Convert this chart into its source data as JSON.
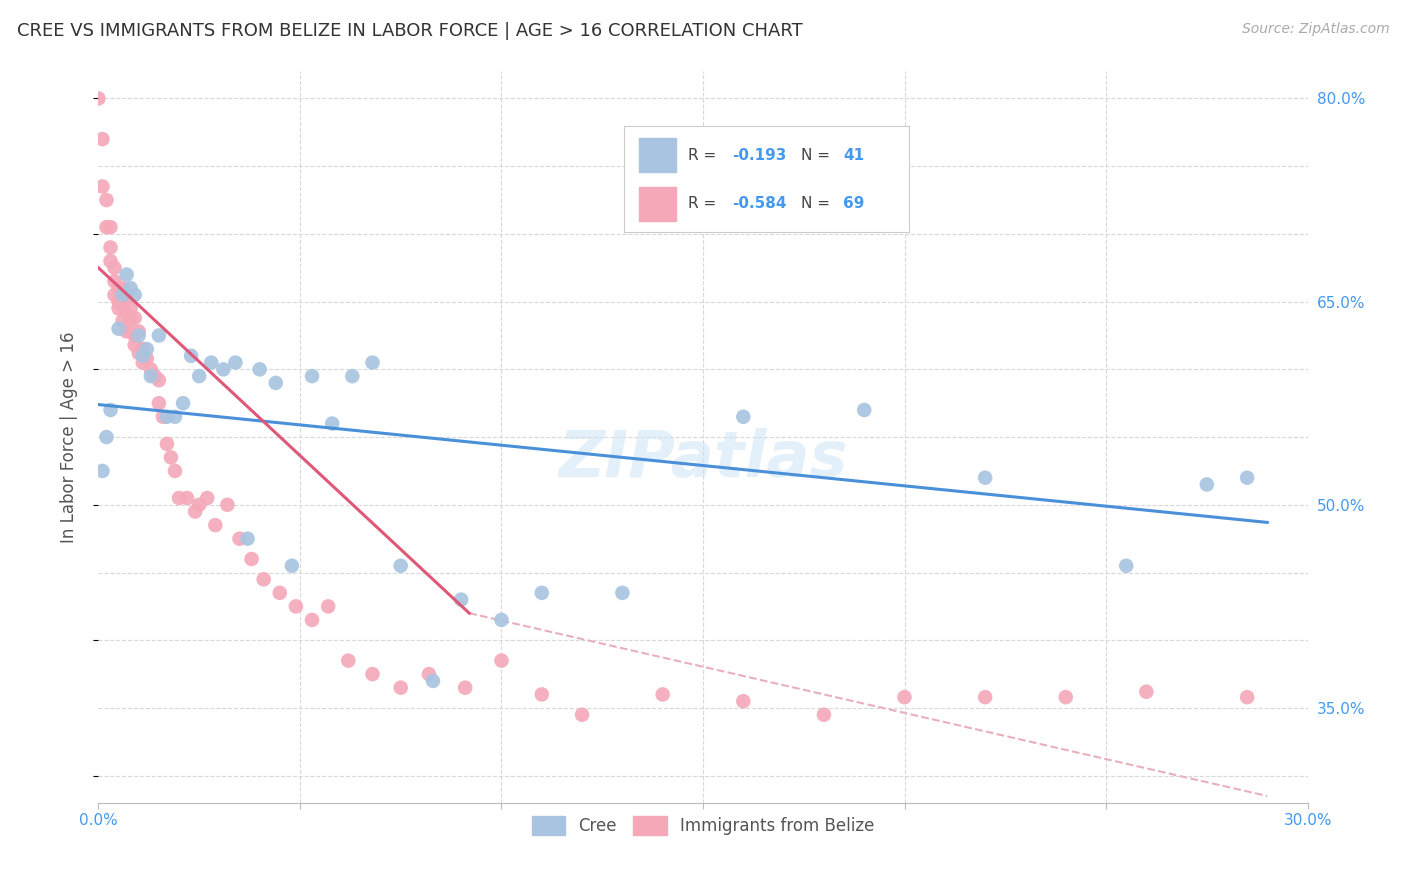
{
  "title": "CREE VS IMMIGRANTS FROM BELIZE IN LABOR FORCE | AGE > 16 CORRELATION CHART",
  "source": "Source: ZipAtlas.com",
  "ylabel": "In Labor Force | Age > 16",
  "watermark": "ZIPatlas",
  "legend_blue_rval": "-0.193",
  "legend_blue_nval": "41",
  "legend_pink_rval": "-0.584",
  "legend_pink_nval": "69",
  "xmin": 0.0,
  "xmax": 0.3,
  "ymin": 0.28,
  "ymax": 0.82,
  "xticks": [
    0.0,
    0.05,
    0.1,
    0.15,
    0.2,
    0.25,
    0.3
  ],
  "yticks": [
    0.3,
    0.35,
    0.4,
    0.45,
    0.5,
    0.55,
    0.6,
    0.65,
    0.7,
    0.75,
    0.8
  ],
  "ytick_labels_right": [
    "",
    "35.0%",
    "",
    "",
    "50.0%",
    "",
    "",
    "65.0%",
    "",
    "",
    "80.0%"
  ],
  "blue_color": "#a8c4e0",
  "pink_color": "#f4a8b8",
  "blue_line_color": "#4a90d9",
  "pink_line_color": "#e05878",
  "dashed_line_color": "#e8b0bc",
  "grid_color": "#d8d8d8",
  "blue_scatter_x": [
    0.001,
    0.002,
    0.003,
    0.005,
    0.006,
    0.007,
    0.008,
    0.009,
    0.01,
    0.011,
    0.012,
    0.013,
    0.015,
    0.017,
    0.019,
    0.021,
    0.023,
    0.025,
    0.028,
    0.031,
    0.034,
    0.037,
    0.04,
    0.044,
    0.048,
    0.053,
    0.058,
    0.063,
    0.068,
    0.075,
    0.083,
    0.09,
    0.1,
    0.11,
    0.13,
    0.16,
    0.19,
    0.22,
    0.255,
    0.275,
    0.285
  ],
  "blue_scatter_y": [
    0.525,
    0.55,
    0.57,
    0.63,
    0.655,
    0.67,
    0.66,
    0.655,
    0.625,
    0.61,
    0.615,
    0.595,
    0.625,
    0.565,
    0.565,
    0.575,
    0.61,
    0.595,
    0.605,
    0.6,
    0.605,
    0.475,
    0.6,
    0.59,
    0.455,
    0.595,
    0.56,
    0.595,
    0.605,
    0.455,
    0.37,
    0.43,
    0.415,
    0.435,
    0.435,
    0.565,
    0.57,
    0.52,
    0.455,
    0.515,
    0.52
  ],
  "pink_scatter_x": [
    0.0,
    0.001,
    0.001,
    0.002,
    0.002,
    0.003,
    0.003,
    0.003,
    0.004,
    0.004,
    0.004,
    0.005,
    0.005,
    0.005,
    0.006,
    0.006,
    0.006,
    0.007,
    0.007,
    0.007,
    0.008,
    0.008,
    0.008,
    0.009,
    0.009,
    0.009,
    0.01,
    0.01,
    0.011,
    0.011,
    0.012,
    0.013,
    0.014,
    0.015,
    0.015,
    0.016,
    0.017,
    0.018,
    0.019,
    0.02,
    0.022,
    0.024,
    0.025,
    0.027,
    0.029,
    0.032,
    0.035,
    0.038,
    0.041,
    0.045,
    0.049,
    0.053,
    0.057,
    0.062,
    0.068,
    0.075,
    0.082,
    0.091,
    0.1,
    0.11,
    0.12,
    0.14,
    0.16,
    0.18,
    0.2,
    0.22,
    0.24,
    0.26,
    0.285
  ],
  "pink_scatter_y": [
    0.8,
    0.77,
    0.735,
    0.725,
    0.705,
    0.705,
    0.69,
    0.68,
    0.675,
    0.665,
    0.655,
    0.66,
    0.65,
    0.645,
    0.66,
    0.648,
    0.636,
    0.652,
    0.642,
    0.628,
    0.645,
    0.638,
    0.628,
    0.638,
    0.625,
    0.618,
    0.628,
    0.612,
    0.615,
    0.605,
    0.608,
    0.6,
    0.595,
    0.592,
    0.575,
    0.565,
    0.545,
    0.535,
    0.525,
    0.505,
    0.505,
    0.495,
    0.5,
    0.505,
    0.485,
    0.5,
    0.475,
    0.46,
    0.445,
    0.435,
    0.425,
    0.415,
    0.425,
    0.385,
    0.375,
    0.365,
    0.375,
    0.365,
    0.385,
    0.36,
    0.345,
    0.36,
    0.355,
    0.345,
    0.358,
    0.358,
    0.358,
    0.362,
    0.358
  ],
  "blue_trendline_x": [
    0.0,
    0.29
  ],
  "blue_trendline_y": [
    0.574,
    0.487
  ],
  "pink_trendline_x": [
    0.0,
    0.092
  ],
  "pink_trendline_y": [
    0.675,
    0.42
  ],
  "dashed_trendline_x": [
    0.092,
    0.29
  ],
  "dashed_trendline_y": [
    0.42,
    0.285
  ]
}
